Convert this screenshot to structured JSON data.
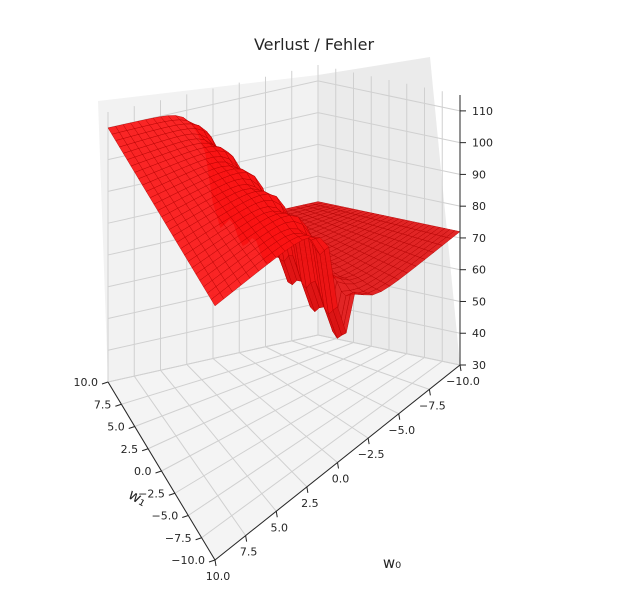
{
  "chart_data": {
    "type": "surface3d",
    "title": "Verlust / Fehler",
    "xlabel": "w₀",
    "ylabel": "w₁",
    "zlabel": "",
    "x_ticks": [
      "10.0",
      "7.5",
      "5.0",
      "2.5",
      "0.0",
      "−2.5",
      "−5.0",
      "−7.5",
      "−10.0"
    ],
    "y_ticks": [
      "10.0",
      "7.5",
      "5.0",
      "2.5",
      "0.0",
      "−2.5",
      "−5.0",
      "−7.5",
      "−10.0"
    ],
    "z_ticks": [
      "30",
      "40",
      "50",
      "60",
      "70",
      "80",
      "90",
      "100",
      "110"
    ],
    "xlim": [
      -10,
      10
    ],
    "ylim": [
      -10,
      10
    ],
    "zlim": [
      30,
      115
    ],
    "grid": true,
    "surface_color": "#ff0000",
    "edge_color": "#b00000",
    "pane_color": "#f2f2f2",
    "grid_color": "#d0d0d0",
    "surface_profile": {
      "description_values": "loss plateau high (~110) on one side, low (~72) on the other, sharp minimum (~48) near w0=0",
      "z_high": 110,
      "z_low": 72,
      "z_min": 48
    }
  }
}
